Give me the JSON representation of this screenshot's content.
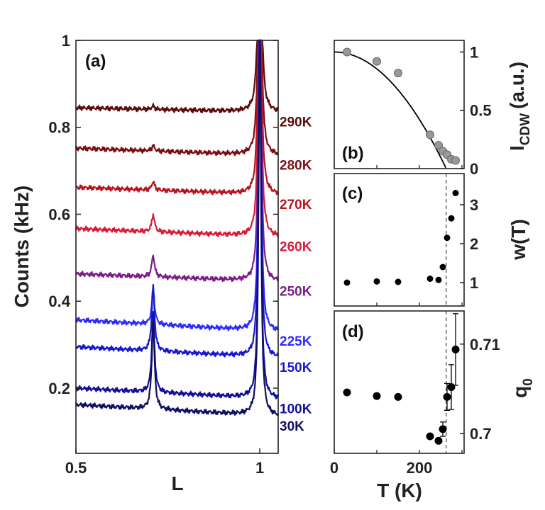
{
  "chart_data": [
    {
      "id": "a",
      "type": "line",
      "panel_label": "(a)",
      "xlabel": "L",
      "ylabel": "Counts (kHz)",
      "xlim": [
        0.5,
        1.05
      ],
      "ylim": [
        0.05,
        1.0
      ],
      "x_ticks": [
        0.5,
        1
      ],
      "x_tick_labels": [
        "0.5",
        "1"
      ],
      "y_ticks": [
        0.2,
        0.4,
        0.6,
        0.8,
        1.0
      ],
      "y_tick_labels": [
        "0.2",
        "0.4",
        "0.6",
        "0.8",
        "1"
      ],
      "grid": false,
      "peak_positions": {
        "cdw": 0.71,
        "bragg": 1.0
      },
      "series": [
        {
          "name": "290K",
          "color": "#5c0a0a",
          "baseline_start": 0.845,
          "baseline_end": 0.835,
          "cdw_peak": 0.008
        },
        {
          "name": "280K",
          "color": "#7c0e14",
          "baseline_start": 0.752,
          "baseline_end": 0.735,
          "cdw_peak": 0.012
        },
        {
          "name": "270K",
          "color": "#b8141e",
          "baseline_start": 0.662,
          "baseline_end": 0.645,
          "cdw_peak": 0.02
        },
        {
          "name": "260K",
          "color": "#d81c3c",
          "baseline_start": 0.567,
          "baseline_end": 0.548,
          "cdw_peak": 0.04
        },
        {
          "name": "250K",
          "color": "#7b1f86",
          "baseline_start": 0.463,
          "baseline_end": 0.445,
          "cdw_peak": 0.05
        },
        {
          "name": "225K",
          "color": "#2f2bff",
          "baseline_start": 0.357,
          "baseline_end": 0.33,
          "cdw_peak": 0.08
        },
        {
          "name": "150K",
          "color": "#1818d0",
          "baseline_start": 0.295,
          "baseline_end": 0.27,
          "cdw_peak": 0.15
        },
        {
          "name": "100K",
          "color": "#10109a",
          "baseline_start": 0.2,
          "baseline_end": 0.175,
          "cdw_peak": 0.18
        },
        {
          "name": "30K",
          "color": "#101060",
          "baseline_start": 0.162,
          "baseline_end": 0.135,
          "cdw_peak": 0.2
        }
      ]
    },
    {
      "id": "b",
      "type": "scatter",
      "panel_label": "(b)",
      "ylabel_main": "I",
      "ylabel_sub": "CDW",
      "ylabel_unit": "(a.u.)",
      "xlim": [
        0,
        305
      ],
      "ylim": [
        0,
        1.1
      ],
      "y_ticks": [
        0,
        0.5,
        1
      ],
      "y_tick_labels": [
        "0",
        "0.5",
        "1"
      ],
      "point_color": "#999999",
      "x": [
        30,
        100,
        150,
        225,
        245,
        255,
        265,
        275,
        285
      ],
      "y": [
        1.0,
        0.92,
        0.82,
        0.29,
        0.2,
        0.15,
        0.12,
        0.08,
        0.07
      ],
      "fit_curve": {
        "type": "order-parameter",
        "tc": 263,
        "exponent": 2
      }
    },
    {
      "id": "c",
      "type": "scatter",
      "panel_label": "(c)",
      "ylabel": "w(T)",
      "xlim": [
        0,
        305
      ],
      "ylim": [
        0.4,
        3.8
      ],
      "y_ticks": [
        1,
        2,
        3
      ],
      "y_tick_labels": [
        "1",
        "2",
        "3"
      ],
      "point_color": "#000000",
      "x": [
        30,
        100,
        150,
        225,
        245,
        255,
        265,
        275,
        285
      ],
      "y": [
        1.0,
        1.03,
        1.02,
        1.1,
        1.07,
        1.4,
        2.15,
        2.65,
        3.3
      ],
      "vline_x": 263
    },
    {
      "id": "d",
      "type": "scatter",
      "panel_label": "(d)",
      "ylabel_main": "q",
      "ylabel_sub": "0",
      "xlabel": "T (K)",
      "xlim": [
        0,
        305
      ],
      "ylim": [
        0.6978,
        0.7137
      ],
      "x_ticks": [
        0,
        200
      ],
      "x_tick_labels": [
        "0",
        "200"
      ],
      "y_ticks": [
        0.7,
        0.71
      ],
      "y_tick_labels": [
        "0.7",
        "0.71"
      ],
      "point_color": "#000000",
      "x": [
        30,
        100,
        150,
        225,
        245,
        255,
        265,
        275,
        285
      ],
      "y": [
        0.7046,
        0.7042,
        0.7041,
        0.6997,
        0.6992,
        0.7005,
        0.7041,
        0.7052,
        0.7094
      ],
      "yerr": [
        0.0,
        0.0,
        0.0,
        0.0,
        0.0,
        0.0008,
        0.0015,
        0.0025,
        0.004
      ],
      "vline_x": 263
    }
  ]
}
